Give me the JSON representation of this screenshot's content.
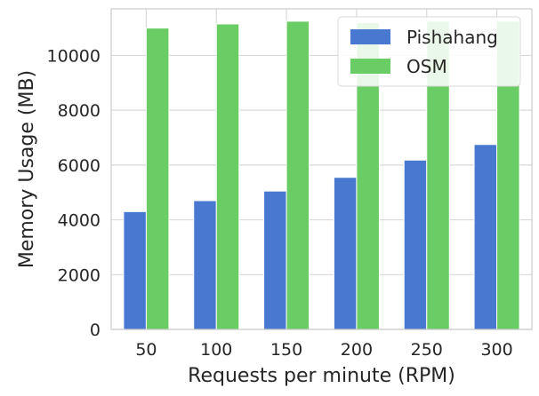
{
  "chart_data": {
    "type": "bar",
    "title": "",
    "xlabel": "Requests per minute (RPM)",
    "ylabel": "Memory Usage (MB)",
    "categories": [
      "50",
      "100",
      "150",
      "200",
      "250",
      "300"
    ],
    "series": [
      {
        "name": "Pishahang",
        "color": "#4878d0",
        "values": [
          4300,
          4700,
          5050,
          5550,
          6180,
          6750
        ]
      },
      {
        "name": "OSM",
        "color": "#6acc64",
        "values": [
          11000,
          11150,
          11250,
          11200,
          11250,
          11250
        ]
      }
    ],
    "ylim": [
      0,
      11700
    ],
    "yticks": [
      0,
      2000,
      4000,
      6000,
      8000,
      10000
    ],
    "grid": true,
    "legend_position": "top-right"
  }
}
